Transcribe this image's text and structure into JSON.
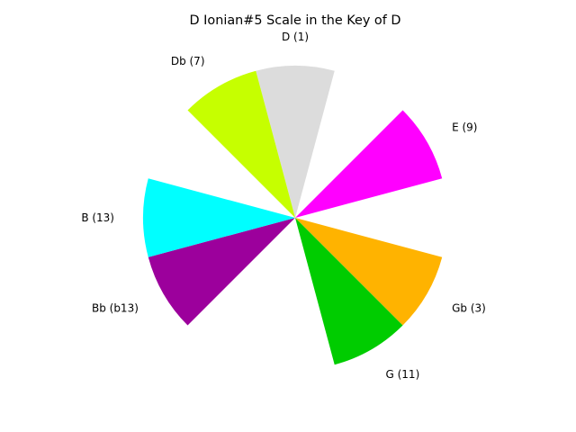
{
  "chart_data": {
    "type": "pie",
    "title": "D Ionian#5 Scale in the Key of D",
    "slices": [
      {
        "label": "D (1)",
        "angle_deg": 90,
        "color": "#dcdcdc"
      },
      {
        "label": "E (9)",
        "angle_deg": 30,
        "color": "#ff00ff"
      },
      {
        "label": "Gb (3)",
        "angle_deg": -30,
        "color": "#ffb300"
      },
      {
        "label": "G (11)",
        "angle_deg": -60,
        "color": "#00cc00"
      },
      {
        "label": "Bb (b13)",
        "angle_deg": 210,
        "color": "#9c009c"
      },
      {
        "label": "B (13)",
        "angle_deg": 180,
        "color": "#00ffff"
      },
      {
        "label": "Db (7)",
        "angle_deg": 120,
        "color": "#c6ff00"
      }
    ],
    "wedge_width_deg": 30
  }
}
